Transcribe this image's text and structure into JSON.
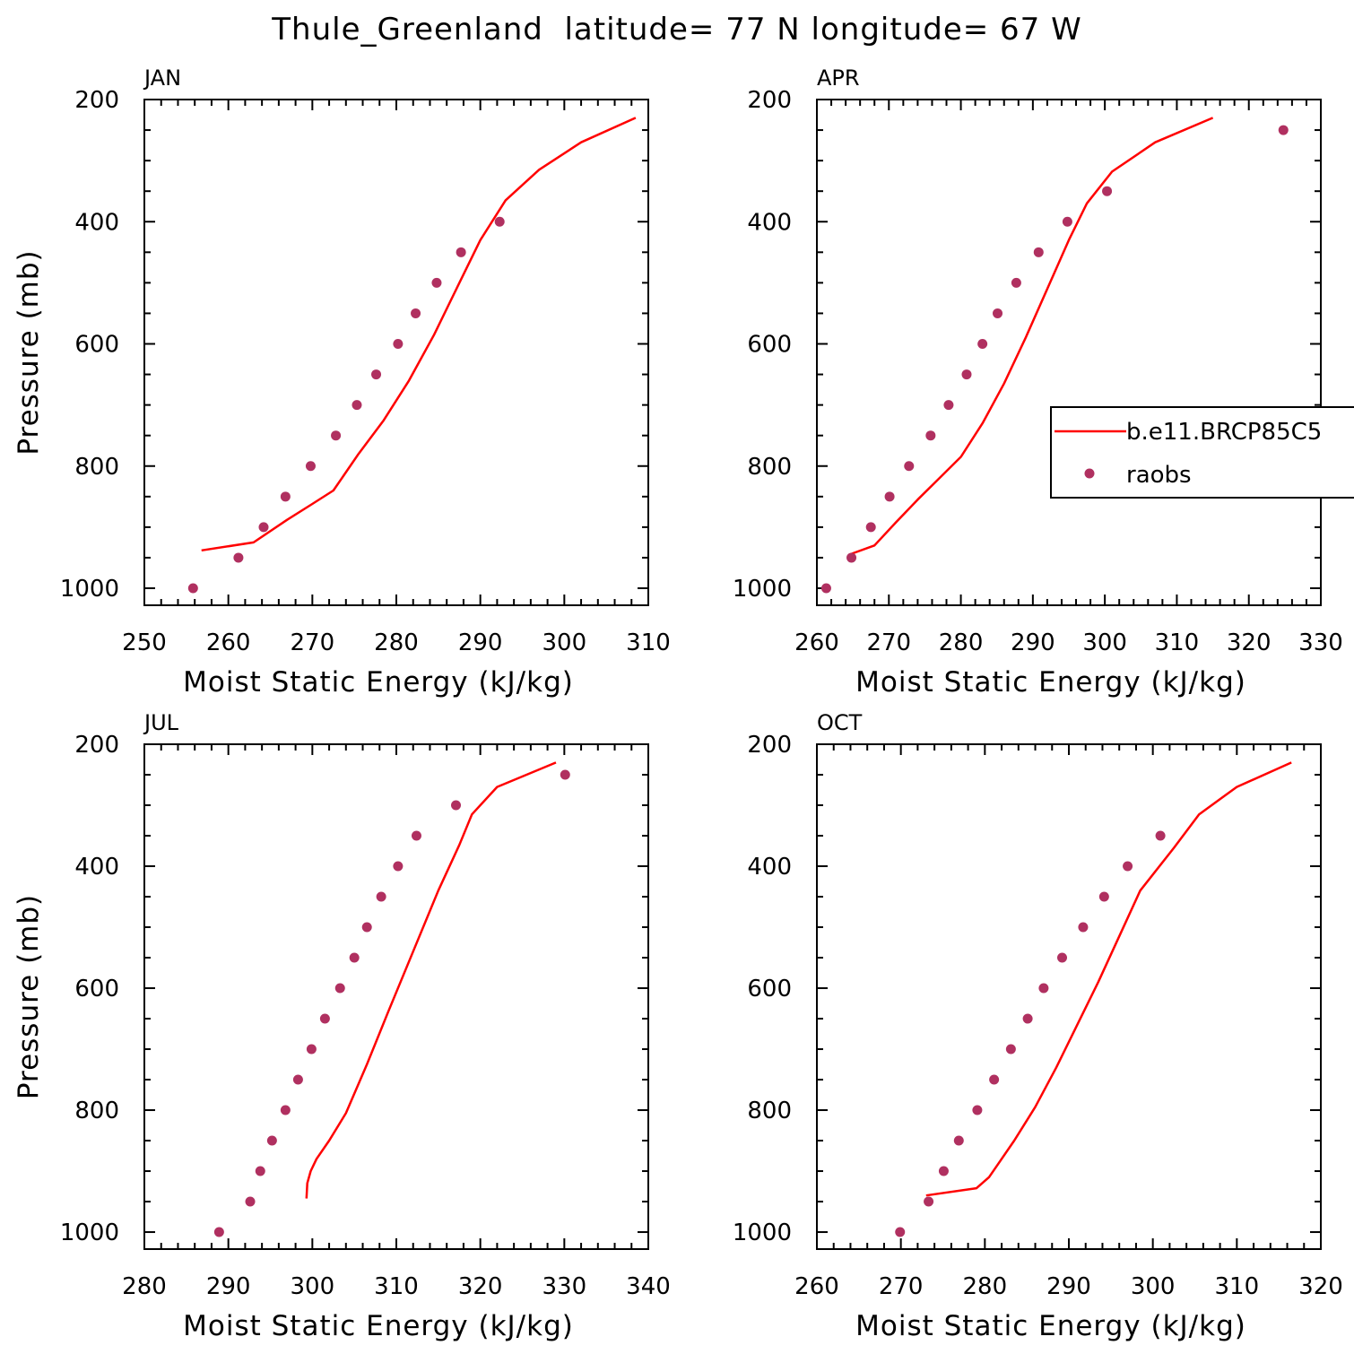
{
  "title": "Thule_Greenland  latitude= 77 N longitude= 67 W",
  "colors": {
    "model": "#ff0000",
    "obs": "#b03060",
    "axis": "#000000"
  },
  "legend": {
    "entries": [
      {
        "label": "b.e11.BRCP85C5",
        "kind": "line"
      },
      {
        "label": "raobs",
        "kind": "marker"
      }
    ]
  },
  "chart_data": [
    {
      "type": "line",
      "panel": "JAN",
      "xlabel": "Moist Static Energy (kJ/kg)",
      "ylabel": "Pressure (mb)",
      "xlim": [
        250,
        310
      ],
      "ylim": [
        1000,
        200
      ],
      "xticks": [
        250,
        260,
        270,
        280,
        290,
        300,
        310
      ],
      "yticks": [
        200,
        400,
        600,
        800,
        1000
      ],
      "series": [
        {
          "name": "b.e11.BRCP85C5",
          "style": "line",
          "x": [
            256.8,
            263,
            267,
            270,
            272.5,
            275.5,
            278.5,
            281.5,
            284.5,
            287.5,
            290,
            293,
            297,
            302,
            308.5
          ],
          "y": [
            938,
            925,
            888,
            862,
            840,
            780,
            725,
            660,
            585,
            500,
            430,
            365,
            315,
            270,
            230
          ]
        },
        {
          "name": "raobs",
          "style": "marker",
          "x": [
            255.8,
            261.2,
            264.2,
            266.8,
            269.8,
            272.8,
            275.3,
            277.6,
            280.2,
            282.3,
            284.8,
            287.7,
            292.3
          ],
          "y": [
            1000,
            950,
            900,
            850,
            800,
            750,
            700,
            650,
            600,
            550,
            500,
            450,
            400
          ]
        }
      ]
    },
    {
      "type": "line",
      "panel": "APR",
      "xlabel": "Moist Static Energy (kJ/kg)",
      "ylabel": "",
      "xlim": [
        260,
        330
      ],
      "ylim": [
        1000,
        200
      ],
      "xticks": [
        260,
        270,
        280,
        290,
        300,
        310,
        320,
        330
      ],
      "yticks": [
        200,
        400,
        600,
        800,
        1000
      ],
      "legend_position": "right",
      "series": [
        {
          "name": "b.e11.BRCP85C5",
          "style": "line",
          "x": [
            264.5,
            268,
            271,
            274,
            277,
            280,
            283,
            286,
            289,
            292,
            295,
            297.5,
            301,
            307,
            315
          ],
          "y": [
            945,
            930,
            892,
            855,
            820,
            785,
            730,
            665,
            590,
            510,
            430,
            370,
            318,
            270,
            230
          ]
        },
        {
          "name": "raobs",
          "style": "marker",
          "x": [
            261.3,
            264.8,
            267.5,
            270.1,
            272.8,
            275.8,
            278.3,
            280.8,
            283,
            285.1,
            287.7,
            290.8,
            294.8,
            300.3,
            324.8
          ],
          "y": [
            1000,
            950,
            900,
            850,
            800,
            750,
            700,
            650,
            600,
            550,
            500,
            450,
            400,
            350,
            250
          ]
        }
      ]
    },
    {
      "type": "line",
      "panel": "JUL",
      "xlabel": "Moist Static Energy (kJ/kg)",
      "ylabel": "Pressure (mb)",
      "xlim": [
        280,
        340
      ],
      "ylim": [
        1000,
        200
      ],
      "xticks": [
        280,
        290,
        300,
        310,
        320,
        330,
        340
      ],
      "yticks": [
        200,
        400,
        600,
        800,
        1000
      ],
      "series": [
        {
          "name": "b.e11.BRCP85C5",
          "style": "line",
          "x": [
            299.3,
            299.4,
            299.8,
            300.5,
            302,
            304,
            306.5,
            309,
            312,
            315,
            317.5,
            319,
            322,
            329
          ],
          "y": [
            945,
            920,
            900,
            880,
            850,
            805,
            725,
            640,
            540,
            440,
            365,
            315,
            270,
            230
          ]
        },
        {
          "name": "raobs",
          "style": "marker",
          "x": [
            288.9,
            292.6,
            293.8,
            295.2,
            296.8,
            298.3,
            299.9,
            301.5,
            303.3,
            305,
            306.5,
            308.2,
            310.2,
            312.4,
            317.1,
            330.1
          ],
          "y": [
            1000,
            950,
            900,
            850,
            800,
            750,
            700,
            650,
            600,
            550,
            500,
            450,
            400,
            350,
            300,
            250
          ]
        }
      ]
    },
    {
      "type": "line",
      "panel": "OCT",
      "xlabel": "Moist Static Energy (kJ/kg)",
      "ylabel": "",
      "xlim": [
        260,
        320
      ],
      "ylim": [
        1000,
        200
      ],
      "xticks": [
        260,
        270,
        280,
        290,
        300,
        310,
        320
      ],
      "yticks": [
        200,
        400,
        600,
        800,
        1000
      ],
      "series": [
        {
          "name": "b.e11.BRCP85C5",
          "style": "line",
          "x": [
            273,
            279,
            280.5,
            281.5,
            283.5,
            286,
            288.5,
            291,
            293.5,
            296,
            298.5,
            302.5,
            305.5,
            310,
            316.5
          ],
          "y": [
            940,
            928,
            910,
            890,
            850,
            795,
            730,
            660,
            590,
            515,
            440,
            370,
            315,
            270,
            230
          ]
        },
        {
          "name": "raobs",
          "style": "marker",
          "x": [
            269.9,
            273.3,
            275.1,
            276.9,
            279.1,
            281.1,
            283.1,
            285.1,
            287,
            289.2,
            291.7,
            294.2,
            297,
            300.9
          ],
          "y": [
            1000,
            950,
            900,
            850,
            800,
            750,
            700,
            650,
            600,
            550,
            500,
            450,
            400,
            350
          ]
        }
      ]
    }
  ]
}
